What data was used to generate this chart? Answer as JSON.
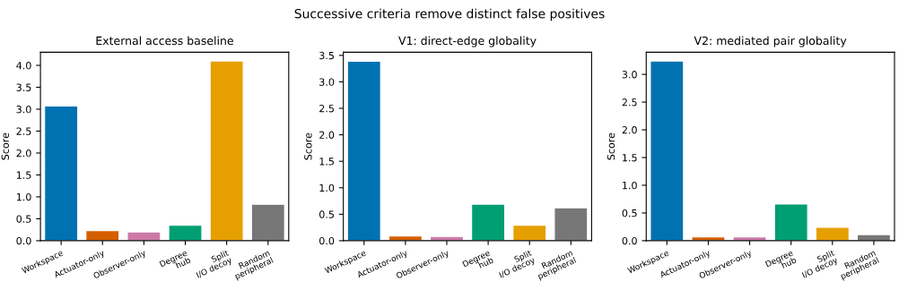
{
  "chart_data": [
    {
      "type": "bar",
      "title": "External access baseline",
      "ylabel": "Score",
      "annotations": [
        "Successive criteria remove distinct false positives"
      ],
      "categories": [
        "Workspace",
        "Actuator-only",
        "Observer-only",
        "Degree\nhub",
        "Split\nI/O decoy",
        "Random\nperipheral"
      ],
      "values": [
        3.07,
        0.23,
        0.2,
        0.35,
        4.1,
        0.83
      ],
      "colors": [
        "#0072b2",
        "#d55e00",
        "#cc79a7",
        "#009e73",
        "#e69f00",
        "#777777"
      ],
      "ylim": [
        0,
        4.3
      ],
      "yticks": [
        {
          "value": 0,
          "label": "0.0"
        },
        0.5,
        {
          "value": 1,
          "label": "1.0"
        },
        1.5,
        {
          "value": 2,
          "label": "2.0"
        },
        2.5,
        {
          "value": 3,
          "label": "3.0"
        },
        3.5,
        {
          "value": 4,
          "label": "4.0"
        }
      ],
      "grid": false
    },
    {
      "type": "bar",
      "title": "V1: direct-edge globality",
      "ylabel": "Score",
      "categories": [
        "Workspace",
        "Actuator-only",
        "Observer-only",
        "Degree\nhub",
        "Split\nI/O decoy",
        "Random\nperipheral"
      ],
      "values": [
        3.39,
        0.09,
        0.08,
        0.69,
        0.29,
        0.62
      ],
      "colors": [
        "#0072b2",
        "#d55e00",
        "#cc79a7",
        "#009e73",
        "#e69f00",
        "#777777"
      ],
      "ylim": [
        0,
        3.56
      ],
      "yticks": [
        {
          "value": 0,
          "label": "0.0"
        },
        0.5,
        {
          "value": 1,
          "label": "1.0"
        },
        1.5,
        {
          "value": 2,
          "label": "2.0"
        },
        2.5,
        {
          "value": 3,
          "label": "3.0"
        },
        3.5
      ],
      "grid": false
    },
    {
      "type": "bar",
      "title": "V2: mediated pair globality",
      "ylabel": "Score",
      "categories": [
        "Workspace",
        "Actuator-only",
        "Observer-only",
        "Degree\nhub",
        "Split\nI/O decoy",
        "Random\nperipheral"
      ],
      "values": [
        3.24,
        0.07,
        0.07,
        0.66,
        0.24,
        0.11
      ],
      "colors": [
        "#0072b2",
        "#d55e00",
        "#cc79a7",
        "#009e73",
        "#e69f00",
        "#777777"
      ],
      "ylim": [
        0,
        3.4
      ],
      "yticks": [
        {
          "value": 0,
          "label": "0.0"
        },
        0.5,
        {
          "value": 1,
          "label": "1.0"
        },
        1.5,
        {
          "value": 2,
          "label": "2.0"
        },
        2.5,
        {
          "value": 3,
          "label": "3.0"
        }
      ],
      "grid": false
    }
  ]
}
